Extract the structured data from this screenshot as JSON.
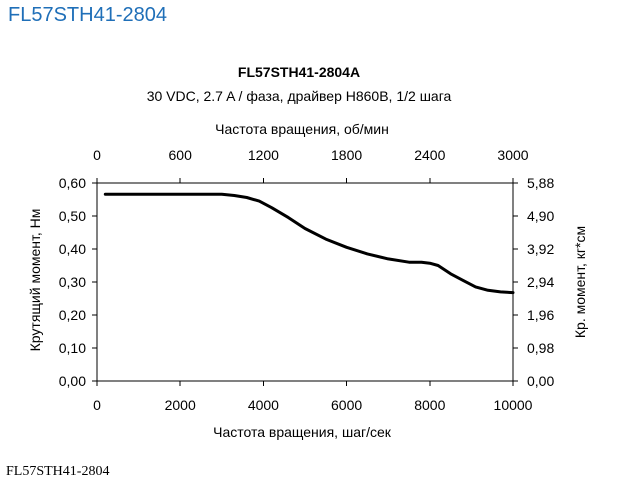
{
  "page": {
    "title": "FL57STH41-2804",
    "caption": "FL57STH41-2804"
  },
  "chart_data": {
    "type": "line",
    "title": "FL57STH41-2804A",
    "subtitle": "30 VDC, 2.7 A / фаза, драйвер H860B, 1/2 шага",
    "xlabel": "Частота вращения, шаг/сек",
    "x2label": "Частота вращения, об/мин",
    "ylabel": "Крутящий момент, Нм",
    "y2label": "Кр. момент, кг*см",
    "xlim": [
      0,
      10000
    ],
    "ylim": [
      0,
      0.6
    ],
    "x_ticks": [
      "0",
      "2000",
      "4000",
      "6000",
      "8000",
      "10000"
    ],
    "x2_ticks": [
      "0",
      "600",
      "1200",
      "1800",
      "2400",
      "3000"
    ],
    "y_ticks": [
      "0,00",
      "0,10",
      "0,20",
      "0,30",
      "0,40",
      "0,50",
      "0,60"
    ],
    "y2_ticks": [
      "0,00",
      "0,98",
      "1,96",
      "2,94",
      "3,92",
      "4,90",
      "5,88"
    ],
    "grid": false,
    "series": [
      {
        "color": "#000000",
        "x": [
          200,
          1000,
          2000,
          3000,
          3300,
          3600,
          3900,
          4200,
          4600,
          5000,
          5500,
          6000,
          6500,
          7000,
          7500,
          7800,
          8000,
          8200,
          8500,
          8800,
          9100,
          9400,
          9700,
          10000
        ],
        "y": [
          0.566,
          0.566,
          0.566,
          0.566,
          0.562,
          0.556,
          0.545,
          0.525,
          0.495,
          0.462,
          0.43,
          0.405,
          0.385,
          0.37,
          0.36,
          0.36,
          0.357,
          0.35,
          0.325,
          0.305,
          0.285,
          0.275,
          0.27,
          0.268
        ]
      }
    ]
  }
}
